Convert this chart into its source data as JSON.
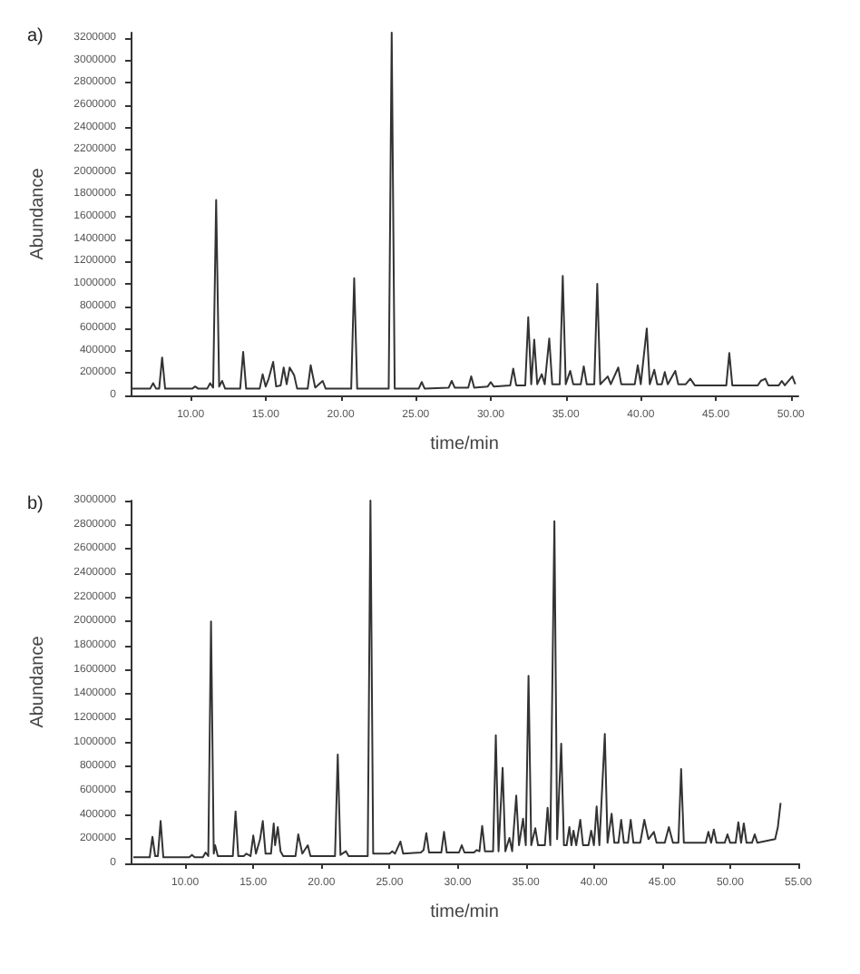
{
  "chart_data": [
    {
      "type": "line",
      "title": "a)",
      "xlabel": "time/min",
      "ylabel": "Abundance",
      "xlim": [
        6,
        50.5
      ],
      "ylim": [
        0,
        3250000
      ],
      "xticks": [
        {
          "value": 10,
          "label": "10.00"
        },
        {
          "value": 15,
          "label": "15.00"
        },
        {
          "value": 20,
          "label": "20.00"
        },
        {
          "value": 25,
          "label": "25.00"
        },
        {
          "value": 30,
          "label": "30.00"
        },
        {
          "value": 35,
          "label": "35.00"
        },
        {
          "value": 40,
          "label": "40.00"
        },
        {
          "value": 45,
          "label": "45.00"
        },
        {
          "value": 50,
          "label": "50.00"
        }
      ],
      "yticks": [
        0,
        200000,
        400000,
        600000,
        800000,
        1000000,
        1200000,
        1400000,
        1600000,
        1800000,
        2000000,
        2200000,
        2400000,
        2600000,
        2800000,
        3000000,
        3200000
      ],
      "marker": "none",
      "line_style": "solid",
      "series": [
        {
          "color": "#333333",
          "x": [
            6.0,
            7.3,
            7.5,
            7.7,
            7.9,
            8.1,
            8.3,
            10.1,
            10.3,
            10.5,
            11.1,
            11.3,
            11.5,
            11.7,
            11.9,
            12.1,
            12.3,
            13.3,
            13.5,
            13.7,
            14.6,
            14.8,
            15.0,
            15.2,
            15.5,
            15.7,
            16.0,
            16.2,
            16.4,
            16.6,
            16.9,
            17.1,
            17.8,
            18.0,
            18.3,
            18.8,
            19.0,
            20.7,
            20.9,
            21.1,
            23.2,
            23.4,
            23.6,
            25.2,
            25.4,
            25.6,
            27.2,
            27.4,
            27.6,
            28.5,
            28.7,
            28.9,
            29.8,
            30.0,
            30.2,
            31.3,
            31.5,
            31.7,
            32.3,
            32.5,
            32.7,
            32.9,
            33.1,
            33.4,
            33.6,
            33.9,
            34.1,
            34.6,
            34.8,
            35.0,
            35.3,
            35.5,
            36.0,
            36.2,
            36.4,
            36.9,
            37.1,
            37.3,
            37.8,
            38.0,
            38.5,
            38.7,
            39.6,
            39.8,
            40.0,
            40.4,
            40.6,
            40.9,
            41.1,
            41.4,
            41.6,
            41.8,
            42.3,
            42.5,
            43.0,
            43.3,
            43.6,
            45.7,
            45.9,
            46.1,
            47.8,
            48.0,
            48.3,
            48.5,
            49.2,
            49.4,
            49.6,
            50.1,
            50.3
          ],
          "values": [
            60000,
            60000,
            110000,
            60000,
            60000,
            340000,
            60000,
            60000,
            80000,
            60000,
            60000,
            110000,
            70000,
            1750000,
            80000,
            130000,
            60000,
            60000,
            390000,
            60000,
            60000,
            190000,
            80000,
            150000,
            300000,
            80000,
            90000,
            250000,
            100000,
            250000,
            180000,
            60000,
            60000,
            270000,
            70000,
            130000,
            60000,
            60000,
            1050000,
            60000,
            60000,
            3250000,
            60000,
            60000,
            120000,
            60000,
            70000,
            130000,
            70000,
            70000,
            170000,
            70000,
            80000,
            120000,
            80000,
            90000,
            240000,
            90000,
            90000,
            700000,
            100000,
            500000,
            100000,
            190000,
            100000,
            510000,
            100000,
            100000,
            1070000,
            100000,
            220000,
            100000,
            100000,
            260000,
            100000,
            100000,
            1000000,
            100000,
            170000,
            100000,
            250000,
            100000,
            100000,
            270000,
            100000,
            600000,
            100000,
            230000,
            100000,
            100000,
            210000,
            100000,
            220000,
            100000,
            100000,
            150000,
            90000,
            90000,
            380000,
            90000,
            90000,
            130000,
            150000,
            90000,
            90000,
            130000,
            90000,
            170000,
            100000
          ]
        }
      ]
    },
    {
      "type": "line",
      "title": "b)",
      "xlabel": "time/min",
      "ylabel": "Abundance",
      "xlim": [
        6,
        55
      ],
      "ylim": [
        0,
        3000000
      ],
      "xticks": [
        {
          "value": 10,
          "label": "10.00"
        },
        {
          "value": 15,
          "label": "15.00"
        },
        {
          "value": 20,
          "label": "20.00"
        },
        {
          "value": 25,
          "label": "25.00"
        },
        {
          "value": 30,
          "label": "30.00"
        },
        {
          "value": 35,
          "label": "35.00"
        },
        {
          "value": 40,
          "label": "40.00"
        },
        {
          "value": 45,
          "label": "45.00"
        },
        {
          "value": 50,
          "label": "50.00"
        },
        {
          "value": 55,
          "label": "55.00"
        }
      ],
      "yticks": [
        0,
        200000,
        400000,
        600000,
        800000,
        1000000,
        1200000,
        1400000,
        1600000,
        1800000,
        2000000,
        2200000,
        2400000,
        2600000,
        2800000,
        3000000
      ],
      "marker": "none",
      "line_style": "solid",
      "series": [
        {
          "color": "#333333",
          "x": [
            6.2,
            7.4,
            7.6,
            7.8,
            8.0,
            8.2,
            8.4,
            10.3,
            10.5,
            10.7,
            11.3,
            11.5,
            11.7,
            11.9,
            12.1,
            12.2,
            12.4,
            13.5,
            13.7,
            13.9,
            14.3,
            14.5,
            14.8,
            15.0,
            15.2,
            15.5,
            15.7,
            15.9,
            16.3,
            16.5,
            16.6,
            16.8,
            17.0,
            17.2,
            18.1,
            18.3,
            18.6,
            19.0,
            19.2,
            21.0,
            21.2,
            21.4,
            21.8,
            22.0,
            23.4,
            23.6,
            23.8,
            25.0,
            25.2,
            25.4,
            25.8,
            26.0,
            27.3,
            27.5,
            27.7,
            27.9,
            28.8,
            29.0,
            29.2,
            30.1,
            30.3,
            30.5,
            31.2,
            31.4,
            31.6,
            31.8,
            32.0,
            32.6,
            32.8,
            33.0,
            33.3,
            33.5,
            33.8,
            34.0,
            34.3,
            34.5,
            34.8,
            35.0,
            35.2,
            35.4,
            35.7,
            35.9,
            36.4,
            36.6,
            36.8,
            37.1,
            37.3,
            37.6,
            37.8,
            38.0,
            38.2,
            38.35,
            38.5,
            38.7,
            39.0,
            39.2,
            39.6,
            39.8,
            40.0,
            40.2,
            40.4,
            40.8,
            41.0,
            41.3,
            41.5,
            41.8,
            42.0,
            42.2,
            42.5,
            42.7,
            42.9,
            43.4,
            43.7,
            44.0,
            44.4,
            44.6,
            45.2,
            45.5,
            45.8,
            46.2,
            46.4,
            46.6,
            48.2,
            48.4,
            48.6,
            48.8,
            49.0,
            49.6,
            49.8,
            50.0,
            50.4,
            50.6,
            50.8,
            51.0,
            51.2,
            51.6,
            51.8,
            52.0,
            53.3,
            53.5,
            53.7
          ],
          "values": [
            50000,
            50000,
            220000,
            60000,
            60000,
            350000,
            50000,
            50000,
            70000,
            50000,
            50000,
            90000,
            60000,
            2000000,
            80000,
            150000,
            60000,
            60000,
            430000,
            60000,
            60000,
            80000,
            60000,
            230000,
            80000,
            200000,
            350000,
            80000,
            80000,
            330000,
            150000,
            300000,
            100000,
            60000,
            60000,
            240000,
            80000,
            150000,
            60000,
            60000,
            900000,
            70000,
            100000,
            60000,
            60000,
            3000000,
            80000,
            80000,
            100000,
            80000,
            180000,
            80000,
            90000,
            110000,
            250000,
            90000,
            90000,
            260000,
            90000,
            90000,
            150000,
            90000,
            90000,
            110000,
            100000,
            310000,
            100000,
            100000,
            1060000,
            100000,
            790000,
            100000,
            210000,
            100000,
            560000,
            150000,
            370000,
            150000,
            1550000,
            150000,
            290000,
            150000,
            150000,
            460000,
            150000,
            2830000,
            200000,
            990000,
            150000,
            150000,
            300000,
            150000,
            270000,
            150000,
            360000,
            150000,
            150000,
            270000,
            150000,
            470000,
            150000,
            1070000,
            170000,
            410000,
            170000,
            170000,
            360000,
            170000,
            170000,
            360000,
            170000,
            170000,
            360000,
            200000,
            260000,
            170000,
            170000,
            300000,
            170000,
            170000,
            780000,
            170000,
            170000,
            260000,
            170000,
            280000,
            170000,
            170000,
            240000,
            170000,
            170000,
            340000,
            170000,
            330000,
            170000,
            170000,
            240000,
            170000,
            200000,
            300000,
            500000
          ]
        }
      ]
    }
  ]
}
